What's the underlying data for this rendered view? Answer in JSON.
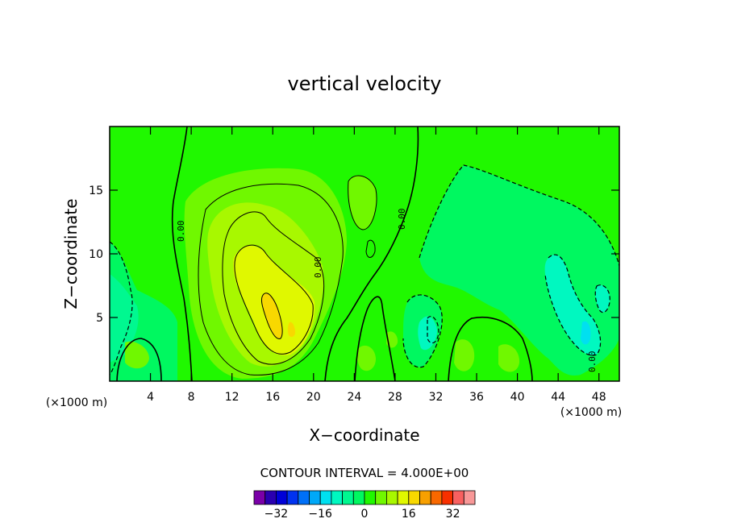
{
  "chart_data": {
    "type": "contour",
    "title": "vertical velocity",
    "xlabel": "X−coordinate",
    "ylabel": "Z−coordinate",
    "x_unit_left": "(×1000 m)",
    "x_unit_right": "(×1000 m)",
    "xlim": [
      0,
      50
    ],
    "ylim": [
      0,
      20
    ],
    "x_ticks": [
      4,
      8,
      12,
      16,
      20,
      24,
      28,
      32,
      36,
      40,
      44,
      48
    ],
    "y_ticks": [
      5,
      10,
      15
    ],
    "contour_interval_label": "CONTOUR INTERVAL = 4.000E+00",
    "contour_line_label": "0.00",
    "colorbar": {
      "levels": [
        -36,
        -32,
        -28,
        -24,
        -20,
        -16,
        -12,
        -8,
        -4,
        0,
        4,
        8,
        12,
        16,
        20,
        24,
        28,
        32,
        36
      ],
      "tick_values": [
        -32,
        -16,
        0,
        16,
        32
      ],
      "tick_labels": [
        "−32",
        "−16",
        "0",
        "16",
        "32"
      ],
      "colors": [
        "#7a00a8",
        "#2a00b0",
        "#0000d8",
        "#0032f0",
        "#0070f8",
        "#00a8f8",
        "#00e0f0",
        "#00f8c0",
        "#00f890",
        "#00f860",
        "#20f800",
        "#70f800",
        "#a8f800",
        "#e0f800",
        "#f8d800",
        "#f8a000",
        "#f86800",
        "#f83000",
        "#f86060",
        "#f89898"
      ]
    },
    "grid": false,
    "legend": "bottom-center colorbar"
  }
}
